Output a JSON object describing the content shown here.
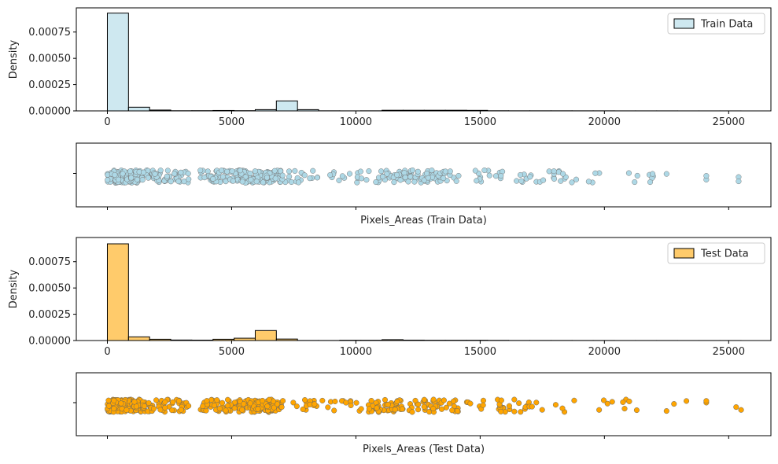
{
  "chart_data": [
    {
      "type": "histogram",
      "ylabel": "Density",
      "xlim": [
        -1250,
        26700
      ],
      "ylim": [
        0,
        0.00098
      ],
      "x_ticks": [
        0,
        5000,
        10000,
        15000,
        20000,
        25000
      ],
      "x_tick_labels": [
        "0",
        "5000",
        "10000",
        "15000",
        "20000",
        "25000"
      ],
      "y_ticks": [
        0,
        0.00025,
        0.0005,
        0.00075
      ],
      "y_tick_labels": [
        "0.00000",
        "0.00025",
        "0.00050",
        "0.00075"
      ],
      "legend": {
        "label": "Train Data",
        "position": "top-right"
      },
      "bin_width": 850,
      "bin_start": 0,
      "densities": [
        0.00093,
        3.5e-05,
        8e-06,
        1.5e-06,
        2e-06,
        4e-06,
        2e-06,
        1.2e-05,
        9.5e-05,
        1.2e-05,
        1e-06,
        5e-07,
        1e-06,
        6e-06,
        6e-06,
        6e-06,
        6e-06,
        5e-06,
        1.5e-06,
        1e-06,
        1e-06,
        1e-06,
        8e-07,
        8e-07,
        5e-07,
        5e-07,
        5e-07,
        3e-07,
        3e-07,
        3e-07
      ],
      "color": "#add8e6",
      "fill_opacity": 0.6,
      "grid": false
    },
    {
      "type": "strip",
      "xlabel": "Pixels_Areas (Train Data)",
      "xlim": [
        -1250,
        26700
      ],
      "x_ticks": [
        0,
        5000,
        10000,
        15000,
        20000,
        25000
      ],
      "clusters": [
        {
          "from": 0,
          "to": 1400,
          "n": 140
        },
        {
          "from": 1400,
          "to": 3300,
          "n": 55
        },
        {
          "from": 3700,
          "to": 5400,
          "n": 60
        },
        {
          "from": 5300,
          "to": 7000,
          "n": 110
        },
        {
          "from": 7000,
          "to": 10000,
          "n": 28
        },
        {
          "from": 10000,
          "to": 11000,
          "n": 12
        },
        {
          "from": 11000,
          "to": 13500,
          "n": 75
        },
        {
          "from": 13500,
          "to": 17500,
          "n": 34
        },
        {
          "from": 17500,
          "to": 19000,
          "n": 14
        },
        {
          "from": 19000,
          "to": 22500,
          "n": 12
        }
      ],
      "points": [
        22500,
        24100,
        24100,
        25400,
        25400
      ],
      "color": "#add8e6",
      "edge_color": "#777777"
    },
    {
      "type": "histogram",
      "ylabel": "Density",
      "xlim": [
        -1250,
        26700
      ],
      "ylim": [
        0,
        0.00098
      ],
      "x_ticks": [
        0,
        5000,
        10000,
        15000,
        20000,
        25000
      ],
      "x_tick_labels": [
        "0",
        "5000",
        "10000",
        "15000",
        "20000",
        "25000"
      ],
      "y_ticks": [
        0,
        0.00025,
        0.0005,
        0.00075
      ],
      "y_tick_labels": [
        "0.00000",
        "0.00025",
        "0.00050",
        "0.00075"
      ],
      "legend": {
        "label": "Test Data",
        "position": "top-right"
      },
      "bin_width": 850,
      "bin_start": 0,
      "densities": [
        0.00092,
        3.5e-05,
        1.2e-05,
        5e-06,
        4e-06,
        1.2e-05,
        2.2e-05,
        9.5e-05,
        1.4e-05,
        1e-06,
        8e-07,
        3e-06,
        3e-06,
        8e-06,
        4e-06,
        3e-06,
        3e-06,
        3e-06,
        2e-06,
        1e-06,
        1e-06,
        1e-06,
        8e-07,
        8e-07,
        5e-07,
        5e-07,
        5e-07,
        4e-07,
        4e-07,
        4e-07
      ],
      "color": "#ffb93a",
      "fill_opacity": 0.75,
      "grid": false
    },
    {
      "type": "strip",
      "xlabel": "Pixels_Areas (Test Data)",
      "xlim": [
        -1250,
        26700
      ],
      "x_ticks": [
        0,
        5000,
        10000,
        15000,
        20000,
        25000
      ],
      "clusters": [
        {
          "from": 0,
          "to": 1400,
          "n": 150
        },
        {
          "from": 1400,
          "to": 3300,
          "n": 55
        },
        {
          "from": 3700,
          "to": 5400,
          "n": 60
        },
        {
          "from": 5300,
          "to": 7000,
          "n": 110
        },
        {
          "from": 7000,
          "to": 10500,
          "n": 30
        },
        {
          "from": 10500,
          "to": 13500,
          "n": 80
        },
        {
          "from": 13500,
          "to": 17000,
          "n": 40
        },
        {
          "from": 17000,
          "to": 21000,
          "n": 14
        }
      ],
      "points": [
        21000,
        21300,
        22500,
        22800,
        23300,
        24100,
        24100,
        25300,
        25500
      ],
      "color": "#ffa500",
      "edge_color": "#666666"
    }
  ]
}
